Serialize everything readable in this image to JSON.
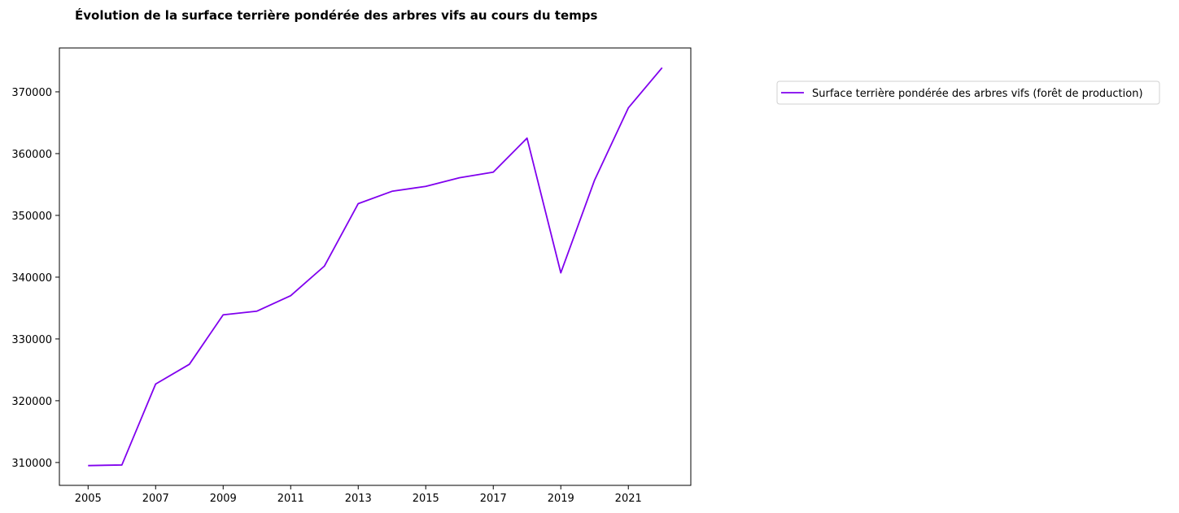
{
  "chart_data": {
    "type": "line",
    "title": "Évolution de la surface terrière pondérée des arbres vifs au cours du temps",
    "xlabel": "",
    "ylabel": "",
    "x": [
      2005,
      2006,
      2007,
      2008,
      2009,
      2010,
      2011,
      2012,
      2013,
      2014,
      2015,
      2016,
      2017,
      2018,
      2019,
      2020,
      2021,
      2022
    ],
    "series": [
      {
        "name": "Surface terrière pondérée des arbres vifs (forêt de production)",
        "color": "#8000ee",
        "values": [
          309500,
          309600,
          322700,
          325900,
          333900,
          334500,
          337000,
          341800,
          351900,
          353900,
          354700,
          356100,
          357000,
          362500,
          340700,
          355700,
          367400,
          373900
        ]
      }
    ],
    "xticks": [
      "2005",
      "2007",
      "2009",
      "2011",
      "2013",
      "2015",
      "2017",
      "2019",
      "2021"
    ],
    "yticks": [
      "310000",
      "320000",
      "330000",
      "340000",
      "350000",
      "360000",
      "370000"
    ],
    "xlim": [
      2004.15,
      2022.85
    ],
    "ylim": [
      306300,
      377100
    ],
    "grid": false,
    "legend_position": "outside-right-top"
  }
}
